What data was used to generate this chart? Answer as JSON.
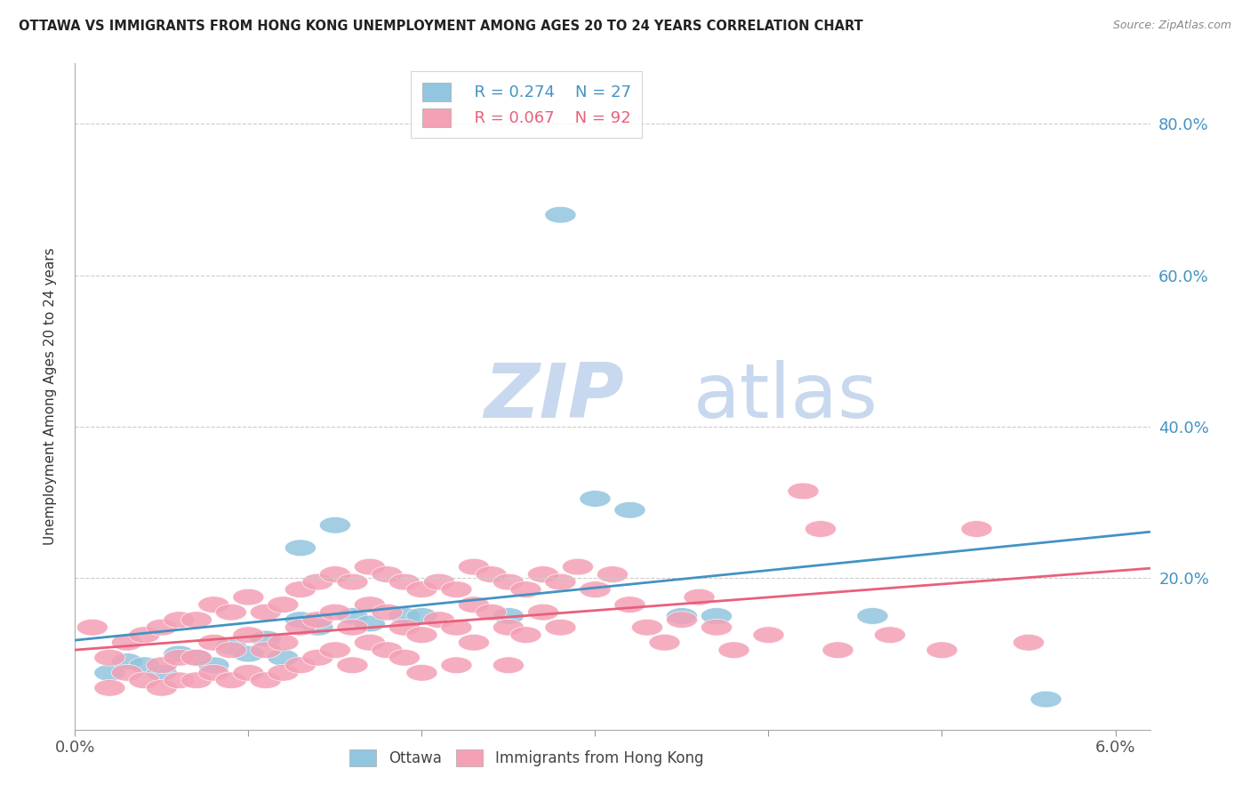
{
  "title": "OTTAWA VS IMMIGRANTS FROM HONG KONG UNEMPLOYMENT AMONG AGES 20 TO 24 YEARS CORRELATION CHART",
  "source": "Source: ZipAtlas.com",
  "ylabel": "Unemployment Among Ages 20 to 24 years",
  "right_yticklabels": [
    "",
    "20.0%",
    "40.0%",
    "60.0%",
    "80.0%"
  ],
  "legend_ottawa_R": "R = 0.274",
  "legend_ottawa_N": "N = 27",
  "legend_hk_R": "R = 0.067",
  "legend_hk_N": "N = 92",
  "ottawa_color": "#92C5DE",
  "hk_color": "#F4A0B5",
  "ottawa_line_color": "#4393C3",
  "hk_line_color": "#E8607A",
  "right_axis_color": "#4393C3",
  "watermark_zip_color": "#C8D8EE",
  "watermark_atlas_color": "#C8D8EE",
  "ottawa_scatter": [
    [
      0.002,
      0.075
    ],
    [
      0.003,
      0.09
    ],
    [
      0.004,
      0.085
    ],
    [
      0.005,
      0.075
    ],
    [
      0.006,
      0.1
    ],
    [
      0.007,
      0.095
    ],
    [
      0.008,
      0.085
    ],
    [
      0.009,
      0.11
    ],
    [
      0.01,
      0.1
    ],
    [
      0.011,
      0.12
    ],
    [
      0.012,
      0.095
    ],
    [
      0.013,
      0.24
    ],
    [
      0.013,
      0.145
    ],
    [
      0.014,
      0.135
    ],
    [
      0.015,
      0.27
    ],
    [
      0.016,
      0.15
    ],
    [
      0.017,
      0.14
    ],
    [
      0.019,
      0.15
    ],
    [
      0.02,
      0.15
    ],
    [
      0.025,
      0.15
    ],
    [
      0.028,
      0.68
    ],
    [
      0.03,
      0.305
    ],
    [
      0.032,
      0.29
    ],
    [
      0.035,
      0.15
    ],
    [
      0.037,
      0.15
    ],
    [
      0.046,
      0.15
    ],
    [
      0.056,
      0.04
    ]
  ],
  "hk_scatter": [
    [
      0.001,
      0.135
    ],
    [
      0.002,
      0.095
    ],
    [
      0.002,
      0.055
    ],
    [
      0.003,
      0.115
    ],
    [
      0.003,
      0.075
    ],
    [
      0.004,
      0.125
    ],
    [
      0.004,
      0.065
    ],
    [
      0.005,
      0.135
    ],
    [
      0.005,
      0.085
    ],
    [
      0.005,
      0.055
    ],
    [
      0.006,
      0.145
    ],
    [
      0.006,
      0.095
    ],
    [
      0.006,
      0.065
    ],
    [
      0.007,
      0.145
    ],
    [
      0.007,
      0.095
    ],
    [
      0.007,
      0.065
    ],
    [
      0.008,
      0.165
    ],
    [
      0.008,
      0.115
    ],
    [
      0.008,
      0.075
    ],
    [
      0.009,
      0.155
    ],
    [
      0.009,
      0.105
    ],
    [
      0.009,
      0.065
    ],
    [
      0.01,
      0.175
    ],
    [
      0.01,
      0.125
    ],
    [
      0.01,
      0.075
    ],
    [
      0.011,
      0.155
    ],
    [
      0.011,
      0.105
    ],
    [
      0.011,
      0.065
    ],
    [
      0.012,
      0.165
    ],
    [
      0.012,
      0.115
    ],
    [
      0.012,
      0.075
    ],
    [
      0.013,
      0.185
    ],
    [
      0.013,
      0.135
    ],
    [
      0.013,
      0.085
    ],
    [
      0.014,
      0.195
    ],
    [
      0.014,
      0.145
    ],
    [
      0.014,
      0.095
    ],
    [
      0.015,
      0.205
    ],
    [
      0.015,
      0.155
    ],
    [
      0.015,
      0.105
    ],
    [
      0.016,
      0.195
    ],
    [
      0.016,
      0.135
    ],
    [
      0.016,
      0.085
    ],
    [
      0.017,
      0.215
    ],
    [
      0.017,
      0.165
    ],
    [
      0.017,
      0.115
    ],
    [
      0.018,
      0.205
    ],
    [
      0.018,
      0.155
    ],
    [
      0.018,
      0.105
    ],
    [
      0.019,
      0.195
    ],
    [
      0.019,
      0.135
    ],
    [
      0.019,
      0.095
    ],
    [
      0.02,
      0.185
    ],
    [
      0.02,
      0.125
    ],
    [
      0.02,
      0.075
    ],
    [
      0.021,
      0.195
    ],
    [
      0.021,
      0.145
    ],
    [
      0.022,
      0.185
    ],
    [
      0.022,
      0.135
    ],
    [
      0.022,
      0.085
    ],
    [
      0.023,
      0.215
    ],
    [
      0.023,
      0.165
    ],
    [
      0.023,
      0.115
    ],
    [
      0.024,
      0.205
    ],
    [
      0.024,
      0.155
    ],
    [
      0.025,
      0.195
    ],
    [
      0.025,
      0.135
    ],
    [
      0.025,
      0.085
    ],
    [
      0.026,
      0.185
    ],
    [
      0.026,
      0.125
    ],
    [
      0.027,
      0.205
    ],
    [
      0.027,
      0.155
    ],
    [
      0.028,
      0.195
    ],
    [
      0.028,
      0.135
    ],
    [
      0.029,
      0.215
    ],
    [
      0.03,
      0.185
    ],
    [
      0.031,
      0.205
    ],
    [
      0.032,
      0.165
    ],
    [
      0.033,
      0.135
    ],
    [
      0.034,
      0.115
    ],
    [
      0.035,
      0.145
    ],
    [
      0.036,
      0.175
    ],
    [
      0.037,
      0.135
    ],
    [
      0.038,
      0.105
    ],
    [
      0.04,
      0.125
    ],
    [
      0.042,
      0.315
    ],
    [
      0.043,
      0.265
    ],
    [
      0.044,
      0.105
    ],
    [
      0.047,
      0.125
    ],
    [
      0.05,
      0.105
    ],
    [
      0.052,
      0.265
    ],
    [
      0.055,
      0.115
    ]
  ],
  "xlim": [
    0.0,
    0.062
  ],
  "ylim": [
    0.0,
    0.88
  ],
  "xticks": [
    0.0,
    0.01,
    0.02,
    0.03,
    0.04,
    0.05,
    0.06
  ],
  "xtick_labels_show": [
    "0.0%",
    "",
    "",
    "",
    "",
    "",
    "6.0%"
  ],
  "ytick_positions": [
    0.0,
    0.2,
    0.4,
    0.6,
    0.8
  ],
  "gridline_color": "#CCCCCC",
  "gridline_style": "--"
}
